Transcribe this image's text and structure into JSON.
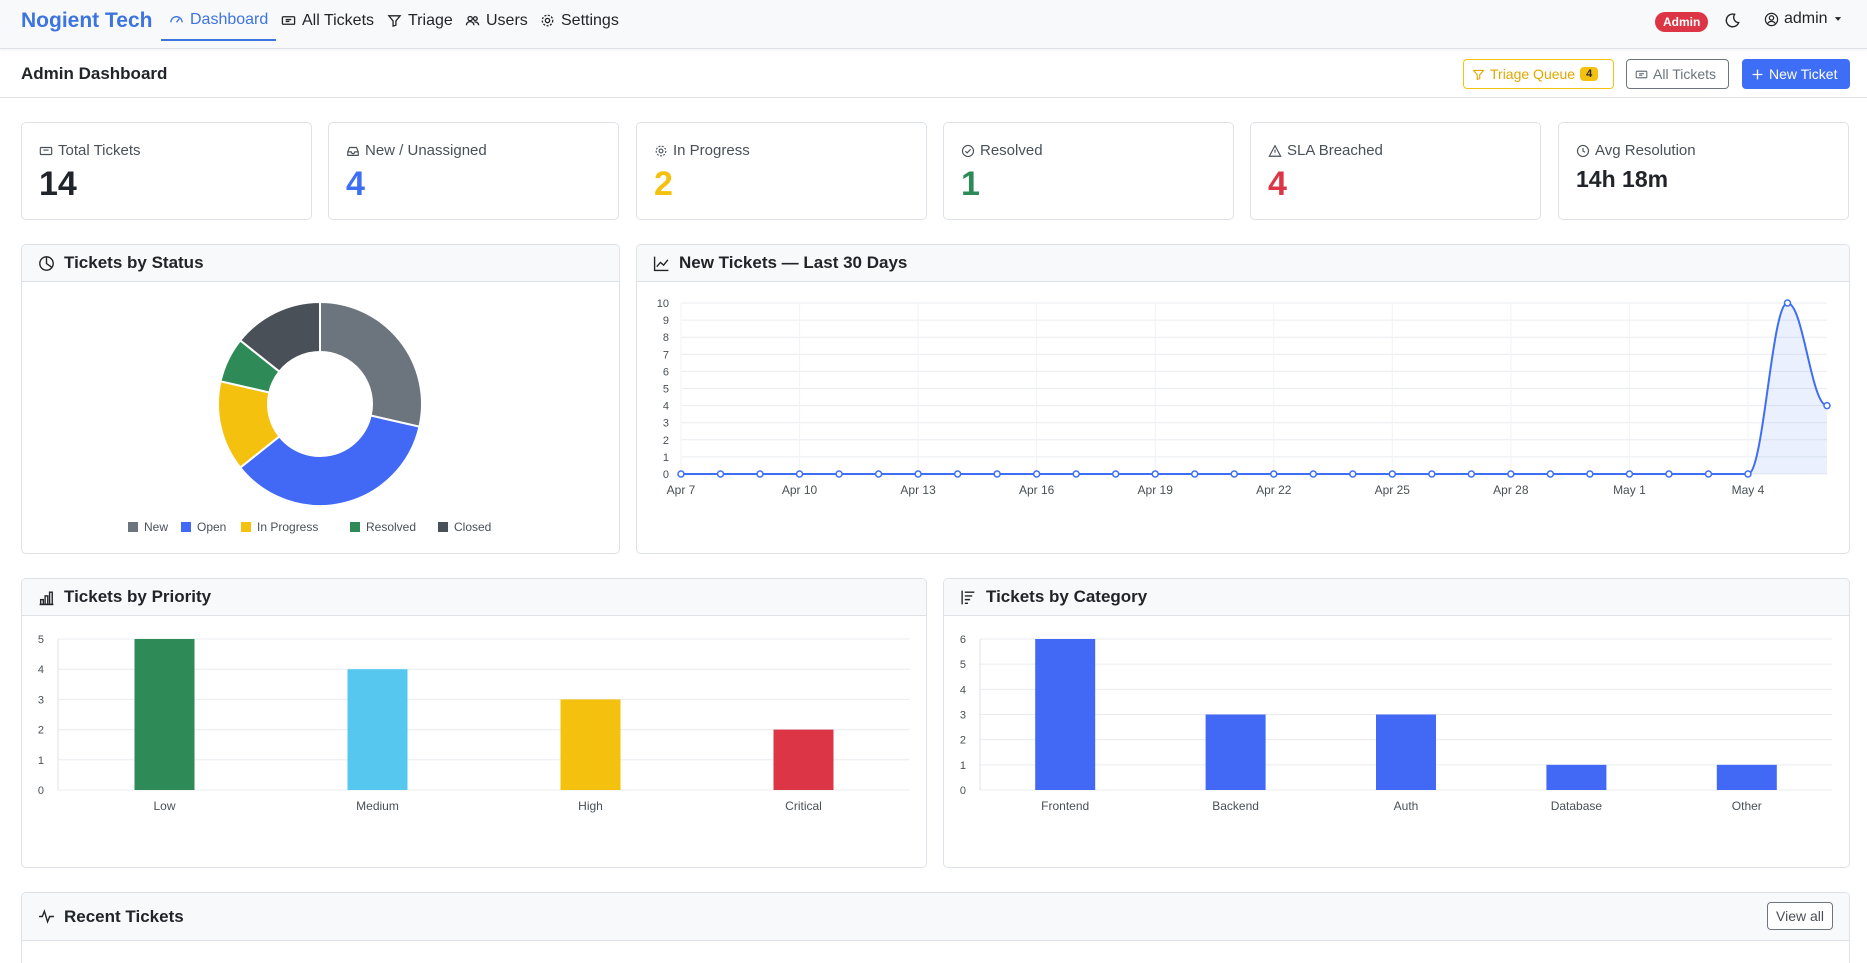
{
  "nav": {
    "brand": "Nogient Tech",
    "links": [
      {
        "label": "Dashboard"
      },
      {
        "label": "All Tickets"
      },
      {
        "label": "Triage"
      },
      {
        "label": "Users"
      },
      {
        "label": "Settings"
      }
    ],
    "role_badge": "Admin",
    "user": "admin"
  },
  "header": {
    "title": "Admin Dashboard",
    "triage_label": "Triage Queue",
    "triage_count": "4",
    "all_tickets_label": "All Tickets",
    "new_ticket_label": "New Ticket"
  },
  "stats": [
    {
      "label": "Total Tickets",
      "value": "14",
      "color": "#212529"
    },
    {
      "label": "New / Unassigned",
      "value": "4",
      "color": "#3d6ef5"
    },
    {
      "label": "In Progress",
      "value": "2",
      "color": "#f5c10f"
    },
    {
      "label": "Resolved",
      "value": "1",
      "color": "#2e8b57"
    },
    {
      "label": "SLA Breached",
      "value": "4",
      "color": "#dc3545"
    },
    {
      "label": "Avg Resolution",
      "value": "14h 18m",
      "color": "#212529"
    }
  ],
  "panels": {
    "status_title": "Tickets by Status",
    "trend_title": "New Tickets — Last 30 Days",
    "priority_title": "Tickets by Priority",
    "category_title": "Tickets by Category",
    "recent_title": "Recent Tickets",
    "view_all_label": "View all"
  },
  "chart_data": [
    {
      "type": "pie",
      "title": "Tickets by Status",
      "categories": [
        "New",
        "Open",
        "In Progress",
        "Resolved",
        "Closed"
      ],
      "values": [
        4,
        5,
        2,
        1,
        2
      ],
      "colors": [
        "#6c757d",
        "#4169f5",
        "#f5c10f",
        "#2e8b57",
        "#495057"
      ],
      "legend": "bottom"
    },
    {
      "type": "line",
      "title": "New Tickets — Last 30 Days",
      "x": [
        "Apr 7",
        "Apr 8",
        "Apr 9",
        "Apr 10",
        "Apr 11",
        "Apr 12",
        "Apr 13",
        "Apr 14",
        "Apr 15",
        "Apr 16",
        "Apr 17",
        "Apr 18",
        "Apr 19",
        "Apr 20",
        "Apr 21",
        "Apr 22",
        "Apr 23",
        "Apr 24",
        "Apr 25",
        "Apr 26",
        "Apr 27",
        "Apr 28",
        "Apr 29",
        "Apr 30",
        "May 1",
        "May 2",
        "May 3",
        "May 4",
        "May 5",
        "May 6"
      ],
      "x_ticks": [
        "Apr 7",
        "Apr 10",
        "Apr 13",
        "Apr 16",
        "Apr 19",
        "Apr 22",
        "Apr 25",
        "Apr 28",
        "May 1",
        "May 4"
      ],
      "values": [
        0,
        0,
        0,
        0,
        0,
        0,
        0,
        0,
        0,
        0,
        0,
        0,
        0,
        0,
        0,
        0,
        0,
        0,
        0,
        0,
        0,
        0,
        0,
        0,
        0,
        0,
        0,
        0,
        10,
        4
      ],
      "ylim": [
        0,
        10
      ],
      "grid": true,
      "color": "#3d6ef5"
    },
    {
      "type": "bar",
      "title": "Tickets by Priority",
      "categories": [
        "Low",
        "Medium",
        "High",
        "Critical"
      ],
      "values": [
        5,
        4,
        3,
        2
      ],
      "colors": [
        "#2e8b57",
        "#56c8f0",
        "#f5c10f",
        "#dc3545"
      ],
      "ylim": [
        0,
        5
      ],
      "grid": true
    },
    {
      "type": "bar",
      "title": "Tickets by Category",
      "categories": [
        "Frontend",
        "Backend",
        "Auth",
        "Database",
        "Other"
      ],
      "values": [
        6,
        3,
        3,
        1,
        1
      ],
      "colors": [
        "#4169f5",
        "#4169f5",
        "#4169f5",
        "#4169f5",
        "#4169f5"
      ],
      "ylim": [
        0,
        6
      ],
      "grid": true
    }
  ]
}
